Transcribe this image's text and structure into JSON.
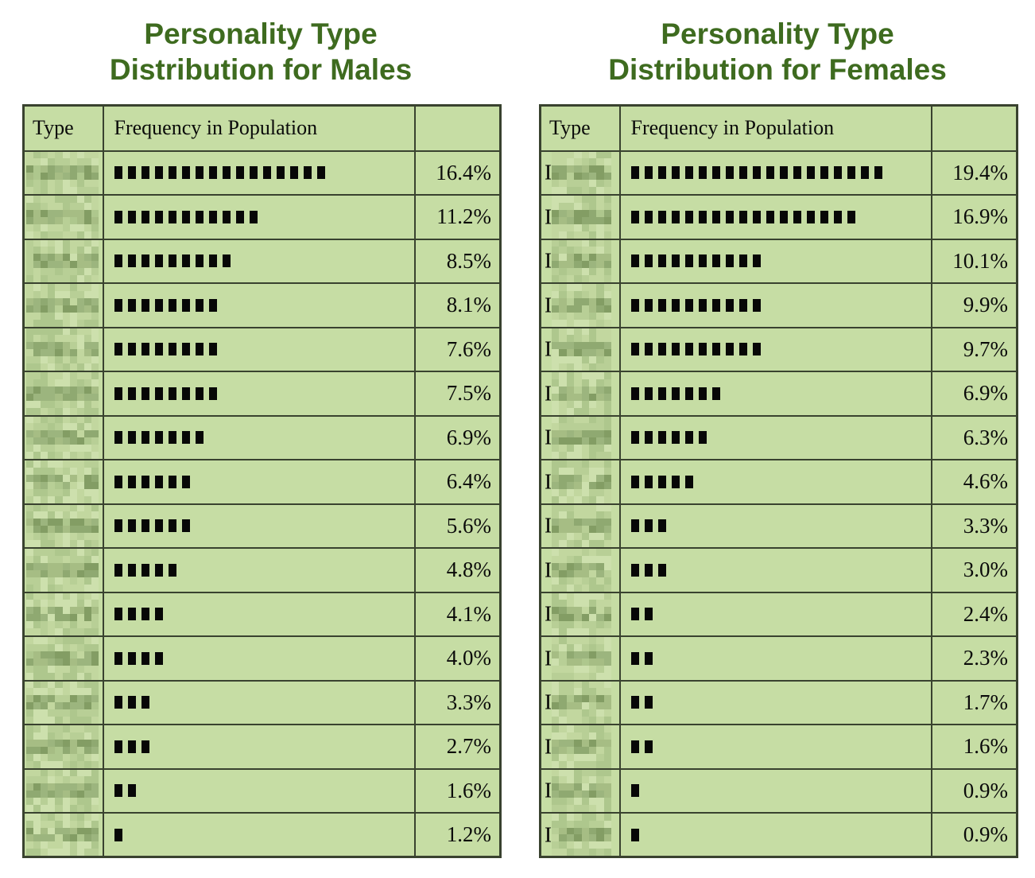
{
  "page": {
    "background": "#ffffff"
  },
  "colors": {
    "title_green": "#3e6b1f",
    "cell_background": "#c6dda4",
    "grid_border": "#39422f",
    "bar_square": "#070707",
    "text": "#0a0a0a",
    "mosaic_light": [
      "#cde0ad",
      "#c2d79f",
      "#b8cf96",
      "#aec78d"
    ],
    "mosaic_dark": [
      "#9cb57e",
      "#8fa971",
      "#839d64",
      "#a6bd84"
    ]
  },
  "tables": [
    {
      "title_line1": "Personality Type",
      "title_line2": "Distribution for Males",
      "header": {
        "type": "Type",
        "frequency": "Frequency in Population",
        "percent": ""
      },
      "type_column_redacted": true,
      "type_fragment": "",
      "rows": [
        {
          "squares": 16,
          "percent": "16.4%"
        },
        {
          "squares": 11,
          "percent": "11.2%"
        },
        {
          "squares": 9,
          "percent": "8.5%"
        },
        {
          "squares": 8,
          "percent": "8.1%"
        },
        {
          "squares": 8,
          "percent": "7.6%"
        },
        {
          "squares": 8,
          "percent": "7.5%"
        },
        {
          "squares": 7,
          "percent": "6.9%"
        },
        {
          "squares": 6,
          "percent": "6.4%"
        },
        {
          "squares": 6,
          "percent": "5.6%"
        },
        {
          "squares": 5,
          "percent": "4.8%"
        },
        {
          "squares": 4,
          "percent": "4.1%"
        },
        {
          "squares": 4,
          "percent": "4.0%"
        },
        {
          "squares": 3,
          "percent": "3.3%"
        },
        {
          "squares": 3,
          "percent": "2.7%"
        },
        {
          "squares": 2,
          "percent": "1.6%"
        },
        {
          "squares": 1,
          "percent": "1.2%"
        }
      ]
    },
    {
      "title_line1": "Personality Type",
      "title_line2": "Distribution for Females",
      "header": {
        "type": "Type",
        "frequency": "Frequency in Population",
        "percent": ""
      },
      "type_column_redacted": true,
      "type_fragment": "I",
      "rows": [
        {
          "squares": 19,
          "percent": "19.4%"
        },
        {
          "squares": 17,
          "percent": "16.9%"
        },
        {
          "squares": 10,
          "percent": "10.1%"
        },
        {
          "squares": 10,
          "percent": "9.9%"
        },
        {
          "squares": 10,
          "percent": "9.7%"
        },
        {
          "squares": 7,
          "percent": "6.9%"
        },
        {
          "squares": 6,
          "percent": "6.3%"
        },
        {
          "squares": 5,
          "percent": "4.6%"
        },
        {
          "squares": 3,
          "percent": "3.3%"
        },
        {
          "squares": 3,
          "percent": "3.0%"
        },
        {
          "squares": 2,
          "percent": "2.4%"
        },
        {
          "squares": 2,
          "percent": "2.3%"
        },
        {
          "squares": 2,
          "percent": "1.7%"
        },
        {
          "squares": 2,
          "percent": "1.6%"
        },
        {
          "squares": 1,
          "percent": "0.9%"
        },
        {
          "squares": 1,
          "percent": "0.9%"
        }
      ]
    }
  ],
  "layout_hint": {
    "panel_lefts": [
      28,
      678
    ]
  },
  "chart_data": [
    {
      "type": "table",
      "title": "Personality Type Distribution for Males",
      "columns": [
        "Type",
        "Frequency in Population",
        ""
      ],
      "type_labels_blurred": true,
      "values_percent": [
        16.4,
        11.2,
        8.5,
        8.1,
        7.6,
        7.5,
        6.9,
        6.4,
        5.6,
        4.8,
        4.1,
        4.0,
        3.3,
        2.7,
        1.6,
        1.2
      ],
      "bar_square_counts": [
        16,
        11,
        9,
        8,
        8,
        8,
        7,
        6,
        6,
        5,
        4,
        4,
        3,
        3,
        2,
        1
      ]
    },
    {
      "type": "table",
      "title": "Personality Type Distribution for Females",
      "columns": [
        "Type",
        "Frequency in Population",
        ""
      ],
      "type_labels_blurred": true,
      "values_percent": [
        19.4,
        16.9,
        10.1,
        9.9,
        9.7,
        6.9,
        6.3,
        4.6,
        3.3,
        3.0,
        2.4,
        2.3,
        1.7,
        1.6,
        0.9,
        0.9
      ],
      "bar_square_counts": [
        19,
        17,
        10,
        10,
        10,
        7,
        6,
        5,
        3,
        3,
        2,
        2,
        2,
        2,
        1,
        1
      ]
    }
  ]
}
